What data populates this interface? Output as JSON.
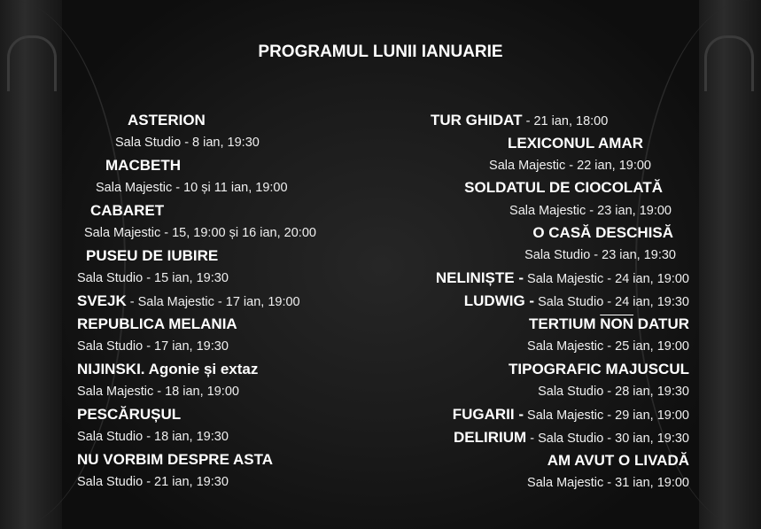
{
  "title": "PROGRAMUL LUNII IANUARIE",
  "left": [
    {
      "title": "ASTERION",
      "detail": "Sala Studio - 8 ian, 19:30"
    },
    {
      "title": "MACBETH",
      "detail": "Sala Majestic - 10 și 11 ian, 19:00"
    },
    {
      "title": "CABARET",
      "detail": "Sala Majestic - 15, 19:00 și 16 ian, 20:00"
    },
    {
      "title": "PUSEU DE IUBIRE",
      "detail": "Sala Studio - 15 ian, 19:30"
    },
    {
      "title": "SVEJK",
      "detail": " - Sala Majestic - 17 ian, 19:00"
    },
    {
      "title": "REPUBLICA MELANIA",
      "detail": "Sala Studio - 17 ian, 19:30"
    },
    {
      "title": "NIJINSKI. Agonie și extaz",
      "detail": "Sala Majestic - 18 ian, 19:00"
    },
    {
      "title": "PESCĂRUȘUL",
      "detail": "Sala Studio - 18 ian, 19:30"
    },
    {
      "title": "NU VORBIM DESPRE ASTA",
      "detail": "Sala Studio - 21 ian, 19:30"
    }
  ],
  "right": [
    {
      "title": "TUR GHIDAT",
      "detail": " - 21 ian, 18:00"
    },
    {
      "title": "LEXICONUL AMAR",
      "detail": "Sala Majestic - 22 ian, 19:00"
    },
    {
      "title": "SOLDATUL DE CIOCOLATĂ",
      "detail": "Sala Majestic - 23 ian, 19:00"
    },
    {
      "title": "O CASĂ DESCHISĂ",
      "detail": "Sala Studio - 23 ian, 19:30"
    },
    {
      "title": "NELINIȘTE -",
      "detail": " Sala Majestic - 24 ian, 19:00"
    },
    {
      "title": "LUDWIG -",
      "detail": " Sala Studio - 24 ian, 19:30"
    },
    {
      "title_a": "TERTIUM ",
      "title_b": "NON",
      "title_c": " DATUR",
      "detail": "Sala Majestic - 25 ian, 19:00"
    },
    {
      "title": "TIPOGRAFIC MAJUSCUL",
      "detail": "Sala Studio - 28 ian, 19:30"
    },
    {
      "title": "FUGARII -",
      "detail": " Sala Majestic - 29 ian, 19:00"
    },
    {
      "title": "DELIRIUM",
      "detail": " - Sala Studio - 30 ian, 19:30"
    },
    {
      "title": "AM AVUT O LIVADĂ",
      "detail": "Sala Majestic - 31 ian, 19:00"
    }
  ]
}
